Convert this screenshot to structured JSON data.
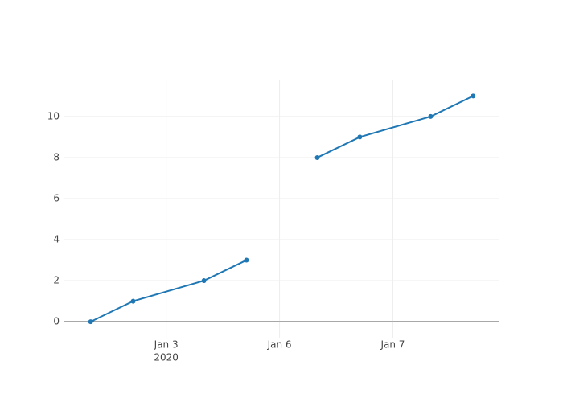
{
  "chart_data": {
    "type": "line",
    "x": [
      "2020-01-02 08:00",
      "2020-01-02 17:00",
      "2020-01-03 08:00",
      "2020-01-03 17:00",
      null,
      "2020-01-06 08:00",
      "2020-01-06 17:00",
      "2020-01-07 08:00",
      "2020-01-07 17:00"
    ],
    "series": [
      {
        "color": "#1f77b4",
        "values": [
          0,
          1,
          2,
          3,
          null,
          8,
          9,
          10,
          11
        ]
      }
    ],
    "skip_weekends": true,
    "xlim": [
      "2020-01-02 02:26",
      "2020-01-07 22:24"
    ],
    "xticks": [
      {
        "value": "2020-01-03 00:00",
        "label": "Jan 3"
      },
      {
        "value": "2020-01-06 00:00",
        "label": "Jan 6"
      },
      {
        "value": "2020-01-07 00:00",
        "label": "Jan 7"
      }
    ],
    "xtick_year": "2020",
    "ylim": [
      -0.78,
      11.76
    ],
    "yticks": [
      0,
      2,
      4,
      6,
      8,
      10
    ],
    "grid": true
  }
}
